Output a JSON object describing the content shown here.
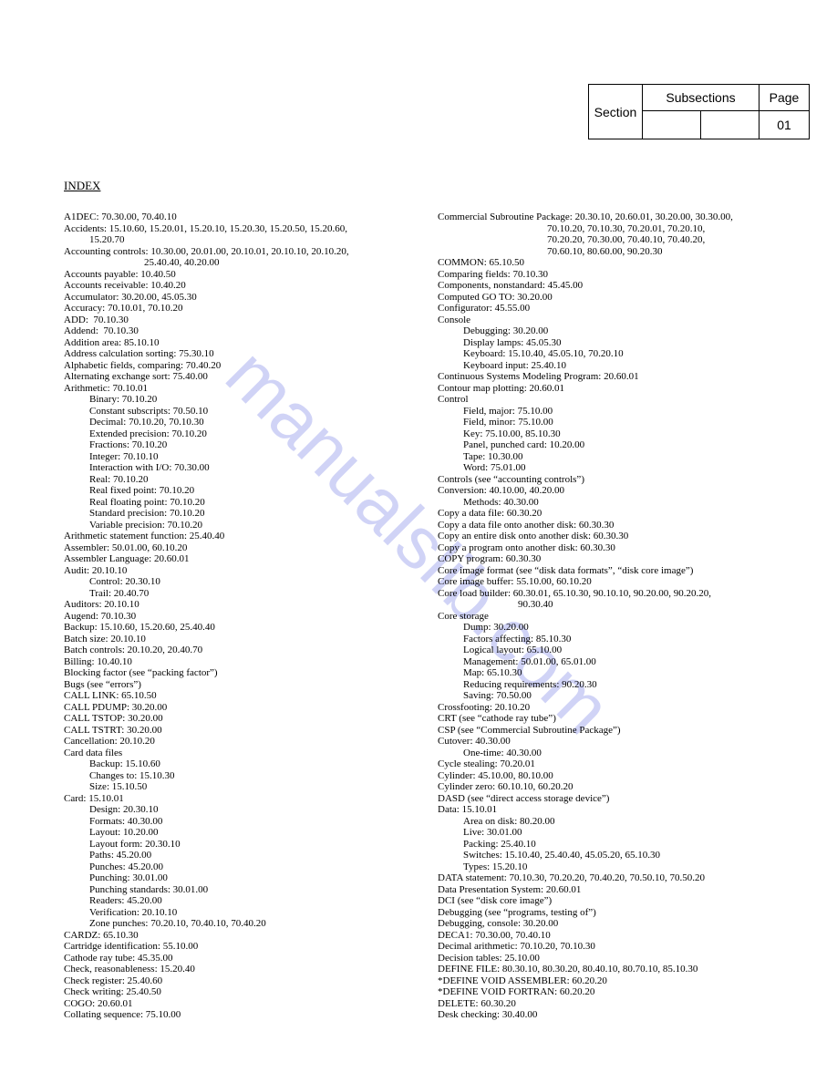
{
  "watermark": "manualslib.com",
  "header": {
    "section_label": "Section",
    "subsections_label": "Subsections",
    "page_label": "Page",
    "page_number": "01"
  },
  "index_title": "INDEX",
  "left": [
    {
      "t": "A1DEC: 70.30.00, 70.40.10"
    },
    {
      "t": "Accidents: 15.10.60, 15.20.01, 15.20.10, 15.20.30, 15.20.50, 15.20.60,"
    },
    {
      "t": "15.20.70",
      "c": "ind1"
    },
    {
      "t": "Accounting controls: 10.30.00, 20.01.00, 20.10.01, 20.10.10, 20.10.20,"
    },
    {
      "t": "25.40.40, 40.20.00",
      "c": "cont"
    },
    {
      "t": "Accounts payable: 10.40.50"
    },
    {
      "t": "Accounts receivable: 10.40.20"
    },
    {
      "t": "Accumulator: 30.20.00, 45.05.30"
    },
    {
      "t": "Accuracy: 70.10.01, 70.10.20"
    },
    {
      "t": "ADD:  70.10.30"
    },
    {
      "t": "Addend:  70.10.30"
    },
    {
      "t": "Addition area: 85.10.10"
    },
    {
      "t": "Address calculation sorting: 75.30.10"
    },
    {
      "t": "Alphabetic fields, comparing: 70.40.20"
    },
    {
      "t": "Alternating exchange sort: 75.40.00"
    },
    {
      "t": "Arithmetic: 70.10.01"
    },
    {
      "t": "Binary: 70.10.20",
      "c": "ind1"
    },
    {
      "t": "Constant subscripts: 70.50.10",
      "c": "ind1"
    },
    {
      "t": "Decimal: 70.10.20, 70.10.30",
      "c": "ind1"
    },
    {
      "t": "Extended precision: 70.10.20",
      "c": "ind1"
    },
    {
      "t": "Fractions: 70.10.20",
      "c": "ind1"
    },
    {
      "t": "Integer: 70.10.10",
      "c": "ind1"
    },
    {
      "t": "Interaction with I/O: 70.30.00",
      "c": "ind1"
    },
    {
      "t": "Real: 70.10.20",
      "c": "ind1"
    },
    {
      "t": "Real fixed point: 70.10.20",
      "c": "ind1"
    },
    {
      "t": "Real floating point: 70.10.20",
      "c": "ind1"
    },
    {
      "t": "Standard precision: 70.10.20",
      "c": "ind1"
    },
    {
      "t": "Variable precision: 70.10.20",
      "c": "ind1"
    },
    {
      "t": "Arithmetic statement function: 25.40.40"
    },
    {
      "t": "Assembler: 50.01.00, 60.10.20"
    },
    {
      "t": "Assembler Language: 20.60.01"
    },
    {
      "t": "Audit: 20.10.10"
    },
    {
      "t": "Control: 20.30.10",
      "c": "ind1"
    },
    {
      "t": "Trail: 20.40.70",
      "c": "ind1"
    },
    {
      "t": "Auditors: 20.10.10"
    },
    {
      "t": "Augend: 70.10.30"
    },
    {
      "t": "Backup: 15.10.60, 15.20.60, 25.40.40"
    },
    {
      "t": "Batch size: 20.10.10"
    },
    {
      "t": "Batch controls: 20.10.20, 20.40.70"
    },
    {
      "t": "Billing: 10.40.10"
    },
    {
      "t": "Blocking factor (see “packing factor”)"
    },
    {
      "t": "Bugs (see “errors”)"
    },
    {
      "t": "CALL LINK: 65.10.50"
    },
    {
      "t": "CALL PDUMP: 30.20.00"
    },
    {
      "t": "CALL TSTOP: 30.20.00"
    },
    {
      "t": "CALL TSTRT: 30.20.00"
    },
    {
      "t": "Cancellation: 20.10.20"
    },
    {
      "t": "Card data files"
    },
    {
      "t": "Backup: 15.10.60",
      "c": "ind1"
    },
    {
      "t": "Changes to: 15.10.30",
      "c": "ind1"
    },
    {
      "t": "Size: 15.10.50",
      "c": "ind1"
    },
    {
      "t": "Card: 15.10.01"
    },
    {
      "t": "Design: 20.30.10",
      "c": "ind1"
    },
    {
      "t": "Formats: 40.30.00",
      "c": "ind1"
    },
    {
      "t": "Layout: 10.20.00",
      "c": "ind1"
    },
    {
      "t": "Layout form: 20.30.10",
      "c": "ind1"
    },
    {
      "t": "Paths: 45.20.00",
      "c": "ind1"
    },
    {
      "t": "Punches: 45.20.00",
      "c": "ind1"
    },
    {
      "t": "Punching: 30.01.00",
      "c": "ind1"
    },
    {
      "t": "Punching standards: 30.01.00",
      "c": "ind1"
    },
    {
      "t": "Readers: 45.20.00",
      "c": "ind1"
    },
    {
      "t": "Verification: 20.10.10",
      "c": "ind1"
    },
    {
      "t": "Zone punches: 70.20.10, 70.40.10, 70.40.20",
      "c": "ind1"
    },
    {
      "t": "CARDZ: 65.10.30"
    },
    {
      "t": "Cartridge identification: 55.10.00"
    },
    {
      "t": "Cathode ray tube: 45.35.00"
    },
    {
      "t": "Check, reasonableness: 15.20.40"
    },
    {
      "t": "Check register: 25.40.60"
    },
    {
      "t": "Check writing: 25.40.50"
    },
    {
      "t": "COGO: 20.60.01"
    },
    {
      "t": "Collating sequence: 75.10.00"
    }
  ],
  "right": [
    {
      "t": "Commercial Subroutine Package: 20.30.10, 20.60.01, 30.20.00, 30.30.00,"
    },
    {
      "t": "70.10.20, 70.10.30, 70.20.01, 70.20.10,",
      "c": "cont2"
    },
    {
      "t": "70.20.20, 70.30.00, 70.40.10, 70.40.20,",
      "c": "cont2"
    },
    {
      "t": "70.60.10, 80.60.00, 90.20.30",
      "c": "cont2"
    },
    {
      "t": "COMMON: 65.10.50"
    },
    {
      "t": "Comparing fields: 70.10.30"
    },
    {
      "t": "Components, nonstandard: 45.45.00"
    },
    {
      "t": "Computed GO TO: 30.20.00"
    },
    {
      "t": "Configurator: 45.55.00"
    },
    {
      "t": "Console"
    },
    {
      "t": "Debugging: 30.20.00",
      "c": "ind1"
    },
    {
      "t": "Display lamps: 45.05.30",
      "c": "ind1"
    },
    {
      "t": "Keyboard: 15.10.40, 45.05.10, 70.20.10",
      "c": "ind1"
    },
    {
      "t": "Keyboard input: 25.40.10",
      "c": "ind1"
    },
    {
      "t": "Continuous Systems Modeling Program: 20.60.01"
    },
    {
      "t": "Contour map plotting: 20.60.01"
    },
    {
      "t": "Control"
    },
    {
      "t": "Field, major: 75.10.00",
      "c": "ind1"
    },
    {
      "t": "Field, minor: 75.10.00",
      "c": "ind1"
    },
    {
      "t": "Key: 75.10.00, 85.10.30",
      "c": "ind1"
    },
    {
      "t": "Panel, punched card: 10.20.00",
      "c": "ind1"
    },
    {
      "t": "Tape: 10.30.00",
      "c": "ind1"
    },
    {
      "t": "Word: 75.01.00",
      "c": "ind1"
    },
    {
      "t": "Controls (see “accounting controls”)"
    },
    {
      "t": "Conversion: 40.10.00, 40.20.00"
    },
    {
      "t": "Methods: 40.30.00",
      "c": "ind1"
    },
    {
      "t": "Copy a data file: 60.30.20"
    },
    {
      "t": "Copy a data file onto another disk: 60.30.30"
    },
    {
      "t": "Copy an entire disk onto another disk: 60.30.30"
    },
    {
      "t": "Copy a program onto another disk: 60.30.30"
    },
    {
      "t": "COPY program: 60.30.30"
    },
    {
      "t": "Core image format (see “disk data formats”, “disk core image”)"
    },
    {
      "t": "Core image buffer: 55.10.00, 60.10.20"
    },
    {
      "t": "Core load builder: 60.30.01, 65.10.30, 90.10.10, 90.20.00, 90.20.20,"
    },
    {
      "t": "90.30.40",
      "c": "cont"
    },
    {
      "t": "Core storage"
    },
    {
      "t": "Dump: 30.20.00",
      "c": "ind1"
    },
    {
      "t": "Factors affecting: 85.10.30",
      "c": "ind1"
    },
    {
      "t": "Logical layout: 65.10.00",
      "c": "ind1"
    },
    {
      "t": "Management: 50.01.00, 65.01.00",
      "c": "ind1"
    },
    {
      "t": "Map: 65.10.30",
      "c": "ind1"
    },
    {
      "t": "Reducing requirements: 90.20.30",
      "c": "ind1"
    },
    {
      "t": "Saving: 70.50.00",
      "c": "ind1"
    },
    {
      "t": "Crossfooting: 20.10.20"
    },
    {
      "t": "CRT (see “cathode ray tube”)"
    },
    {
      "t": "CSP (see “Commercial Subroutine Package”)"
    },
    {
      "t": "Cutover: 40.30.00"
    },
    {
      "t": "One-time: 40.30.00",
      "c": "ind1"
    },
    {
      "t": "Cycle stealing: 70.20.01"
    },
    {
      "t": "Cylinder: 45.10.00, 80.10.00"
    },
    {
      "t": "Cylinder zero: 60.10.10, 60.20.20"
    },
    {
      "t": "DASD (see “direct access storage device”)"
    },
    {
      "t": "Data: 15.10.01"
    },
    {
      "t": "Area on disk: 80.20.00",
      "c": "ind1"
    },
    {
      "t": "Live: 30.01.00",
      "c": "ind1"
    },
    {
      "t": "Packing: 25.40.10",
      "c": "ind1"
    },
    {
      "t": "Switches: 15.10.40, 25.40.40, 45.05.20, 65.10.30",
      "c": "ind1"
    },
    {
      "t": "Types: 15.20.10",
      "c": "ind1"
    },
    {
      "t": "DATA statement: 70.10.30, 70.20.20, 70.40.20, 70.50.10, 70.50.20"
    },
    {
      "t": "Data Presentation System: 20.60.01"
    },
    {
      "t": "DCI (see “disk core image”)"
    },
    {
      "t": "Debugging (see “programs, testing of”)"
    },
    {
      "t": "Debugging, console: 30.20.00"
    },
    {
      "t": "DECA1: 70.30.00, 70.40.10"
    },
    {
      "t": "Decimal arithmetic: 70.10.20, 70.10.30"
    },
    {
      "t": "Decision tables: 25.10.00"
    },
    {
      "t": "DEFINE FILE: 80.30.10, 80.30.20, 80.40.10, 80.70.10, 85.10.30"
    },
    {
      "t": "*DEFINE VOID ASSEMBLER: 60.20.20"
    },
    {
      "t": "*DEFINE VOID FORTRAN: 60.20.20"
    },
    {
      "t": "DELETE: 60.30.20"
    },
    {
      "t": "Desk checking: 30.40.00"
    }
  ]
}
